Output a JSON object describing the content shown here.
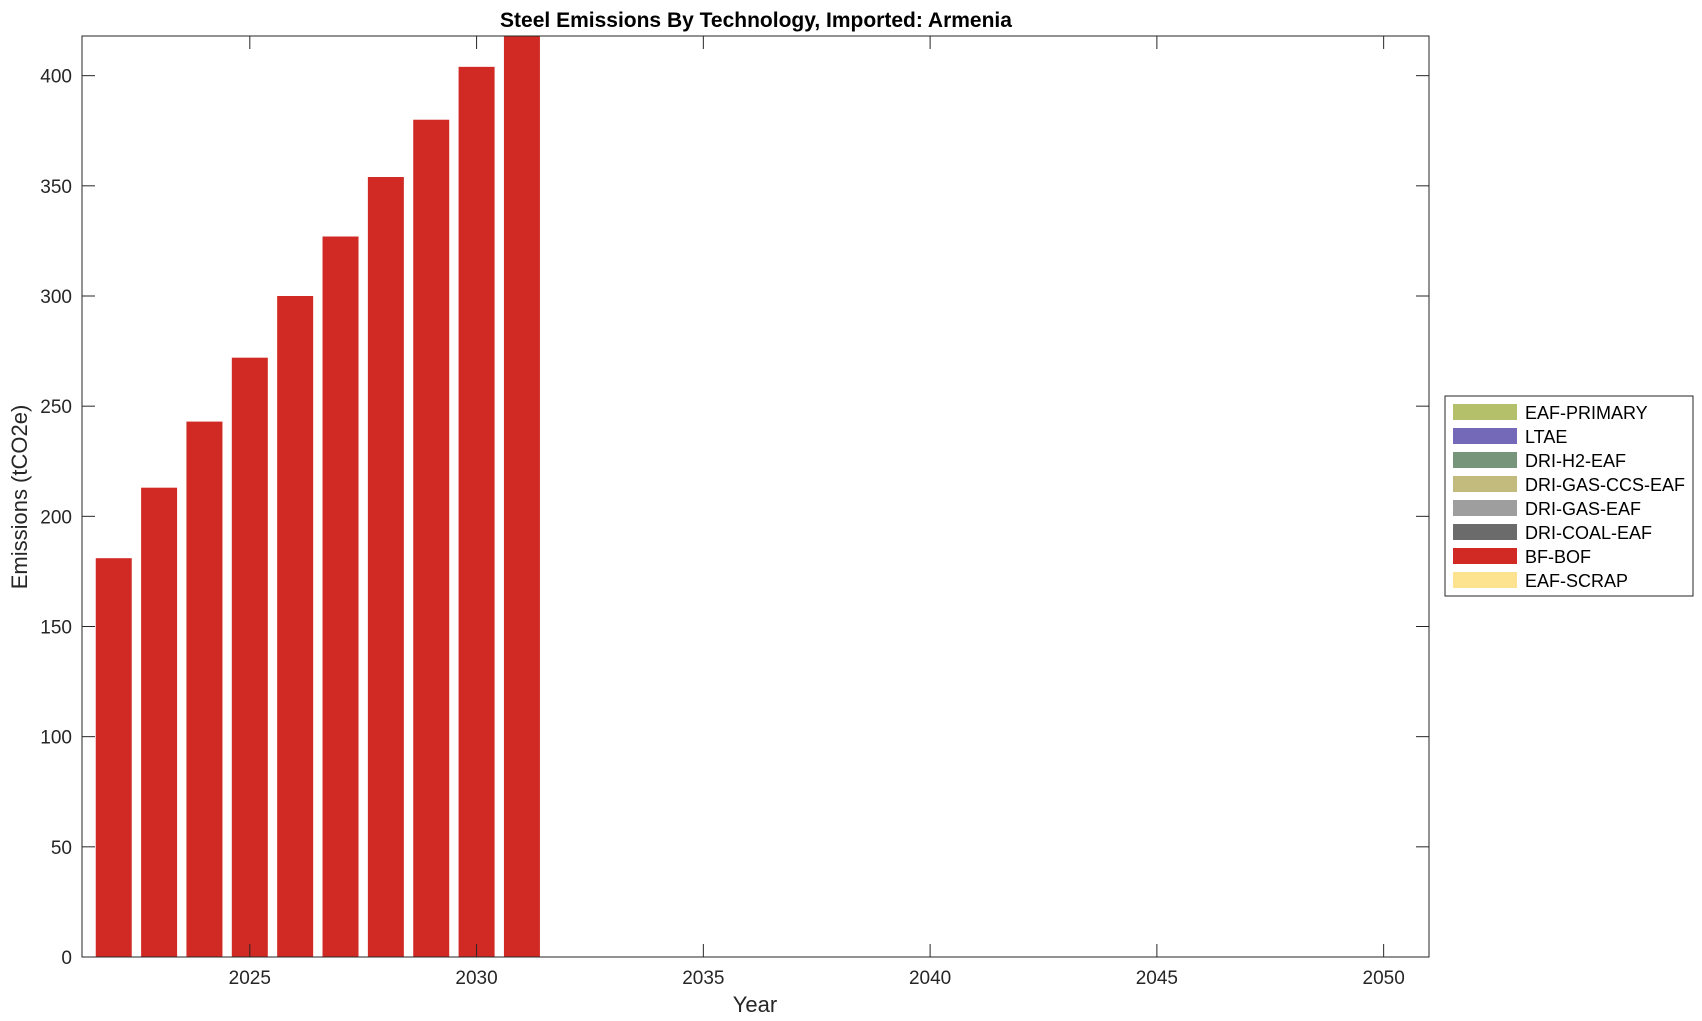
{
  "chart_data": {
    "type": "bar",
    "stacked": true,
    "title": "Steel Emissions By Technology, Imported: Armenia",
    "xlabel": "Year",
    "ylabel": "Emissions (tCO2e)",
    "xlim": [
      2021.3,
      2051.0
    ],
    "ylim": [
      0,
      418
    ],
    "xticks": [
      2025,
      2030,
      2035,
      2040,
      2045,
      2050
    ],
    "yticks": [
      0,
      50,
      100,
      150,
      200,
      250,
      300,
      350,
      400
    ],
    "grid": false,
    "legend_position": "outside-right",
    "x": [
      2022,
      2023,
      2024,
      2025,
      2026,
      2027,
      2028,
      2029,
      2030,
      2031
    ],
    "series": [
      {
        "name": "EAF-PRIMARY",
        "color": "#b5c16a",
        "values": [
          0,
          0,
          0,
          0,
          0,
          0,
          0,
          0,
          0,
          0
        ]
      },
      {
        "name": "LTAE",
        "color": "#7468b8",
        "values": [
          0,
          0,
          0,
          0,
          0,
          0,
          0,
          0,
          0,
          0
        ]
      },
      {
        "name": "DRI-H2-EAF",
        "color": "#76957a",
        "values": [
          0,
          0,
          0,
          0,
          0,
          0,
          0,
          0,
          0,
          0
        ]
      },
      {
        "name": "DRI-GAS-CCS-EAF",
        "color": "#c3bb7d",
        "values": [
          0,
          0,
          0,
          0,
          0,
          0,
          0,
          0,
          0,
          0
        ]
      },
      {
        "name": "DRI-GAS-EAF",
        "color": "#9e9e9e",
        "values": [
          0,
          0,
          0,
          0,
          0,
          0,
          0,
          0,
          0,
          0
        ]
      },
      {
        "name": "DRI-COAL-EAF",
        "color": "#6b6b6b",
        "values": [
          0,
          0,
          0,
          0,
          0,
          0,
          0,
          0,
          0,
          0
        ]
      },
      {
        "name": "BF-BOF",
        "color": "#d12a24",
        "values": [
          181,
          213,
          243,
          272,
          300,
          327,
          354,
          380,
          404,
          430
        ]
      },
      {
        "name": "EAF-SCRAP",
        "color": "#fde38f",
        "values": [
          0,
          0,
          0,
          0,
          0,
          0,
          0,
          0,
          0,
          0
        ]
      }
    ]
  }
}
